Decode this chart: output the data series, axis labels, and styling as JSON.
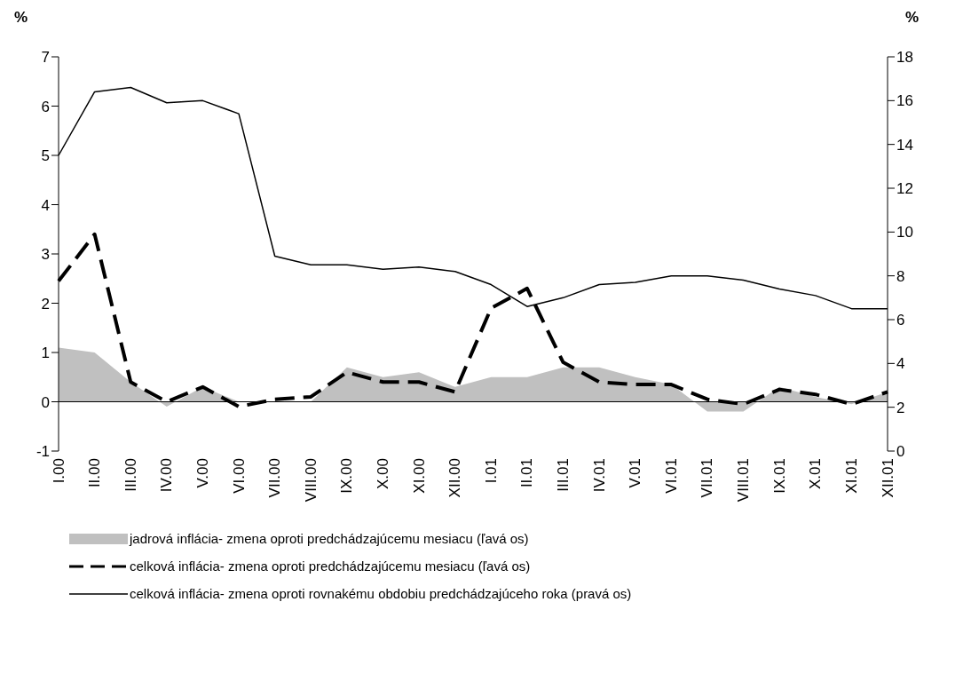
{
  "chart_data": {
    "type": "line",
    "ylabel": "%",
    "y2label": "%",
    "categories": [
      "I.00",
      "II.00",
      "III.00",
      "IV.00",
      "V.00",
      "VI.00",
      "VII.00",
      "VIII.00",
      "IX.00",
      "X.00",
      "XI.00",
      "XII.00",
      "I.01",
      "II.01",
      "III.01",
      "IV.01",
      "V.01",
      "VI.01",
      "VII.01",
      "VIII.01",
      "IX.01",
      "X.01",
      "XI.01",
      "XII.01"
    ],
    "series": [
      {
        "name": "jadrová inflácia- zmena oproti predchádzajúcemu mesiacu (ľavá os)",
        "type": "area",
        "color": "#c0c0c0",
        "values": [
          1.1,
          1.0,
          0.4,
          -0.1,
          0.3,
          0.0,
          0.0,
          0.0,
          0.7,
          0.5,
          0.6,
          0.3,
          0.5,
          0.5,
          0.7,
          0.7,
          0.5,
          0.35,
          -0.2,
          -0.2,
          0.3,
          0.1,
          -0.05,
          0.2
        ]
      },
      {
        "name": "celková inflácia- zmena oproti predchádzajúcemu mesiacu (ľavá os)",
        "color": "#000000",
        "line_style": "dashed",
        "values": [
          2.45,
          3.4,
          0.4,
          0.0,
          0.3,
          -0.1,
          0.05,
          0.1,
          0.6,
          0.4,
          0.4,
          0.2,
          1.9,
          2.3,
          0.8,
          0.4,
          0.35,
          0.35,
          0.05,
          -0.05,
          0.25,
          0.15,
          -0.05,
          0.2
        ]
      },
      {
        "name": "celková inflácia- zmena oproti rovnakému obdobiu predchádzajúceho roka (pravá os)",
        "axis": "y2",
        "color": "#000000",
        "line_style": "solid",
        "values": [
          13.5,
          16.4,
          16.6,
          15.9,
          16.0,
          15.4,
          8.9,
          8.5,
          8.5,
          8.3,
          8.4,
          8.2,
          7.6,
          6.6,
          7.0,
          7.6,
          7.7,
          8.0,
          8.0,
          7.8,
          7.4,
          7.1,
          6.5,
          6.5
        ]
      }
    ],
    "ylim": [
      -1,
      7
    ],
    "yticks": [
      -1,
      0,
      1,
      2,
      3,
      4,
      5,
      6,
      7
    ],
    "y2lim": [
      0,
      18
    ],
    "y2ticks": [
      0,
      2,
      4,
      6,
      8,
      10,
      12,
      14,
      16,
      18
    ],
    "ref_lines": [
      {
        "axis": "y",
        "value": 0,
        "color": "#000000"
      }
    ],
    "grid": false,
    "legend": "bottom",
    "marker": "none"
  }
}
